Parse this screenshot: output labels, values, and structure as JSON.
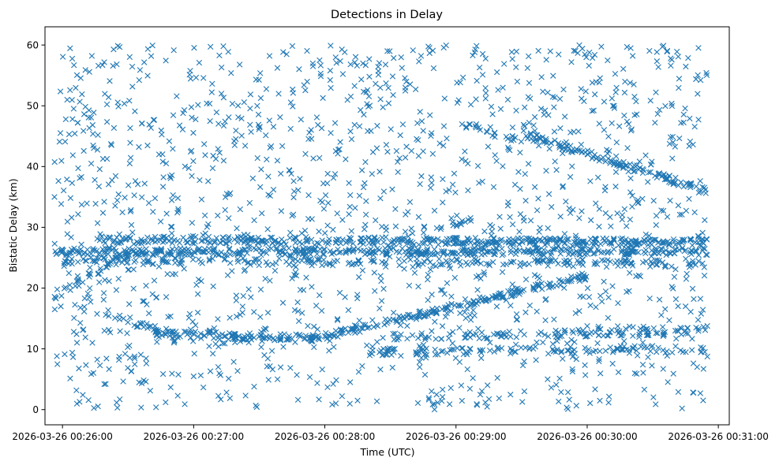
{
  "chart_data": {
    "type": "scatter",
    "title": "Detections in Delay",
    "xlabel": "Time (UTC)",
    "ylabel": "Bistatic Delay (km)",
    "marker": "x",
    "color": "#1f77b4",
    "grid": false,
    "xlim": [
      "2026-03-26 00:25:52",
      "2026-03-26 00:31:05"
    ],
    "ylim": [
      -2.5,
      63
    ],
    "x_ticks": [
      "2026-03-26 00:26:00",
      "2026-03-26 00:27:00",
      "2026-03-26 00:28:00",
      "2026-03-26 00:29:00",
      "2026-03-26 00:30:00",
      "2026-03-26 00:31:00"
    ],
    "y_ticks": [
      "0",
      "10",
      "20",
      "30",
      "40",
      "50",
      "60"
    ],
    "x_range": [
      "2026-03-26 00:25:56",
      "2026-03-26 00:30:55"
    ],
    "tracks": [
      {
        "from": [
          "2026-03-26 00:25:56",
          26
        ],
        "to": [
          "2026-03-26 00:30:55",
          26
        ],
        "density": "high"
      },
      {
        "from": [
          "2026-03-26 00:26:15",
          28
        ],
        "to": [
          "2026-03-26 00:30:55",
          27.5
        ],
        "density": "high"
      },
      {
        "from": [
          "2026-03-26 00:26:00",
          24.5
        ],
        "to": [
          "2026-03-26 00:30:55",
          24
        ],
        "density": "medium"
      },
      {
        "from": [
          "2026-03-26 00:25:56",
          18.5
        ],
        "to": [
          "2026-03-26 00:26:40",
          28
        ],
        "density": "medium"
      },
      {
        "from": [
          "2026-03-26 00:26:20",
          15.5
        ],
        "to": [
          "2026-03-26 00:26:50",
          12.5
        ],
        "density": "medium"
      },
      {
        "from": [
          "2026-03-26 00:26:40",
          12.5
        ],
        "to": [
          "2026-03-26 00:28:00",
          11.7
        ],
        "density": "high"
      },
      {
        "from": [
          "2026-03-26 00:28:00",
          12
        ],
        "to": [
          "2026-03-26 00:30:00",
          22
        ],
        "density": "high"
      },
      {
        "from": [
          "2026-03-26 00:28:20",
          9.5
        ],
        "to": [
          "2026-03-26 00:30:55",
          10
        ],
        "density": "medium"
      },
      {
        "from": [
          "2026-03-26 00:28:30",
          12
        ],
        "to": [
          "2026-03-26 00:30:55",
          13
        ],
        "density": "medium"
      },
      {
        "from": [
          "2026-03-26 00:29:00",
          47.5
        ],
        "to": [
          "2026-03-26 00:29:30",
          44
        ],
        "density": "medium"
      },
      {
        "from": [
          "2026-03-26 00:29:30",
          45.5
        ],
        "to": [
          "2026-03-26 00:30:55",
          36
        ],
        "density": "high"
      },
      {
        "from": [
          "2026-03-26 00:28:50",
          30
        ],
        "to": [
          "2026-03-26 00:29:10",
          31
        ],
        "density": "low"
      }
    ],
    "clutter": {
      "y_range": [
        0,
        60
      ],
      "count_estimate": 1500
    }
  }
}
